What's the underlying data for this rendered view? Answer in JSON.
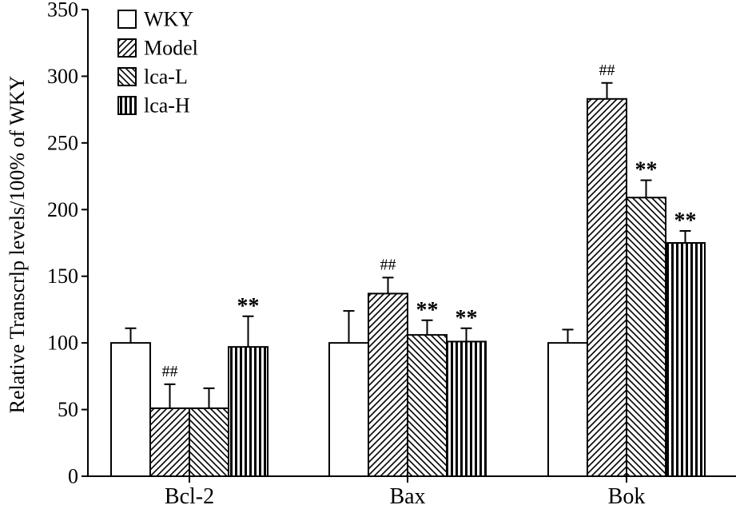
{
  "chart_data": {
    "type": "bar",
    "title": "",
    "xlabel": "",
    "ylabel": "Relative Transcrlp levels/100% of WKY",
    "ylim": [
      0,
      350
    ],
    "yticks": [
      0,
      50,
      100,
      150,
      200,
      250,
      300,
      350
    ],
    "categories": [
      "Bcl-2",
      "Bax",
      "Bok"
    ],
    "legend_position": "top-left",
    "series": [
      {
        "name": "WKY",
        "pattern": "open",
        "values": [
          100,
          100,
          100
        ],
        "errors": [
          11,
          24,
          10
        ],
        "annotations": [
          "",
          "",
          ""
        ]
      },
      {
        "name": "Model",
        "pattern": "diagonal",
        "values": [
          51,
          137,
          283
        ],
        "errors": [
          18,
          12,
          12
        ],
        "annotations": [
          "##",
          "##",
          "##"
        ]
      },
      {
        "name": "lca-L",
        "pattern": "backdiag",
        "values": [
          51,
          106,
          209
        ],
        "errors": [
          15,
          11,
          13
        ],
        "annotations": [
          "",
          "**",
          "**"
        ]
      },
      {
        "name": "lca-H",
        "pattern": "vertical",
        "values": [
          97,
          101,
          175
        ],
        "errors": [
          23,
          10,
          9
        ],
        "annotations": [
          "**",
          "**",
          "**"
        ]
      }
    ]
  }
}
